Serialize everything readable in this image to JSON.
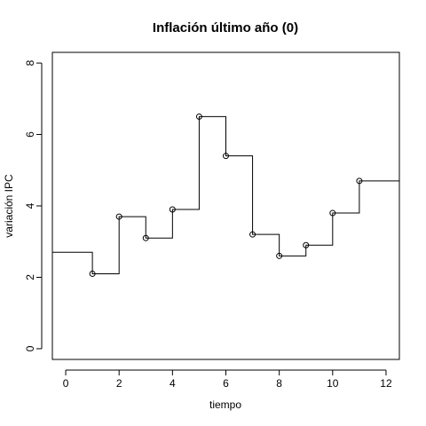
{
  "chart_data": {
    "type": "line",
    "style": "step",
    "title": "Inflación último año (0)",
    "xlabel": "tiempo",
    "ylabel": "variación IPC",
    "xlim": [
      -0.5,
      12.5
    ],
    "ylim": [
      -0.3,
      8.3
    ],
    "xticks": [
      0,
      2,
      4,
      6,
      8,
      10,
      12
    ],
    "yticks": [
      0,
      2,
      4,
      6,
      8
    ],
    "start_level": 2.7,
    "points": [
      {
        "x": 1,
        "y": 2.1
      },
      {
        "x": 2,
        "y": 3.7
      },
      {
        "x": 3,
        "y": 3.1
      },
      {
        "x": 4,
        "y": 3.9
      },
      {
        "x": 5,
        "y": 6.5
      },
      {
        "x": 6,
        "y": 5.4
      },
      {
        "x": 7,
        "y": 3.2
      },
      {
        "x": 8,
        "y": 2.6
      },
      {
        "x": 9,
        "y": 2.9
      },
      {
        "x": 10,
        "y": 3.8
      },
      {
        "x": 11,
        "y": 4.7
      }
    ],
    "grid": false,
    "legend": "none"
  }
}
